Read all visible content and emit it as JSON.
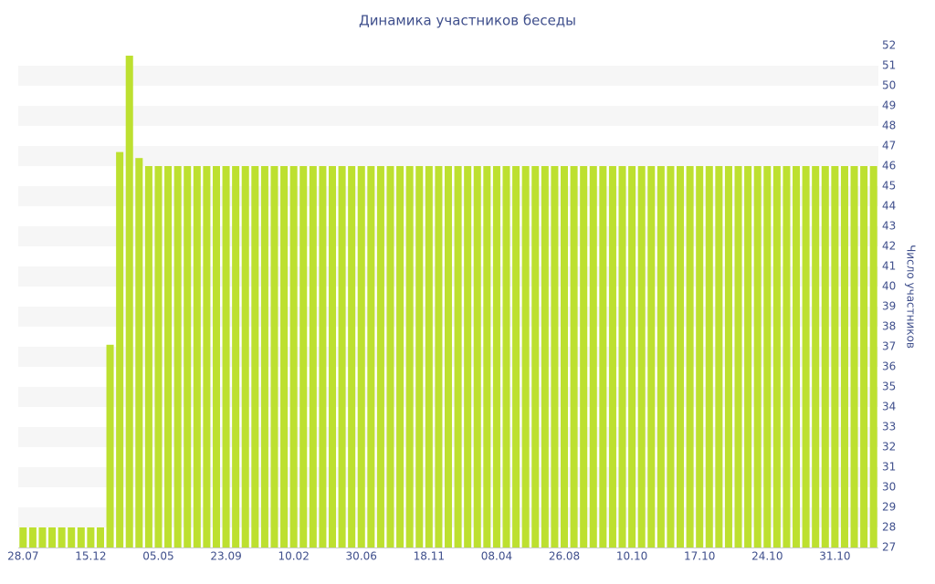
{
  "chart_data": {
    "type": "bar",
    "title": "Динамика участников беседы",
    "y_label": "Число участников",
    "categories": [
      "28.07",
      null,
      null,
      null,
      null,
      null,
      null,
      "15.12",
      null,
      null,
      null,
      null,
      null,
      null,
      "05.05",
      null,
      null,
      null,
      null,
      null,
      null,
      "23.09",
      null,
      null,
      null,
      null,
      null,
      null,
      "10.02",
      null,
      null,
      null,
      null,
      null,
      null,
      "30.06",
      null,
      null,
      null,
      null,
      null,
      null,
      "18.11",
      null,
      null,
      null,
      null,
      null,
      null,
      "08.04",
      null,
      null,
      null,
      null,
      null,
      null,
      "26.08",
      null,
      null,
      null,
      null,
      null,
      null,
      "10.10",
      null,
      null,
      null,
      null,
      null,
      null,
      "17.10",
      null,
      null,
      null,
      null,
      null,
      null,
      "24.10",
      null,
      null,
      null,
      null,
      null,
      null,
      "31.10",
      null,
      null,
      null,
      null
    ],
    "values": [
      28,
      28,
      28,
      28,
      28,
      28,
      28,
      28,
      28,
      37.1,
      46.7,
      51.5,
      46.4,
      46,
      46,
      46,
      46,
      46,
      46,
      46,
      46,
      46,
      46,
      46,
      46,
      46,
      46,
      46,
      46,
      46,
      46,
      46,
      46,
      46,
      46,
      46,
      46,
      46,
      46,
      46,
      46,
      46,
      46,
      46,
      46,
      46,
      46,
      46,
      46,
      46,
      46,
      46,
      46,
      46,
      46,
      46,
      46,
      46,
      46,
      46,
      46,
      46,
      46,
      46,
      46,
      46,
      46,
      46,
      46,
      46,
      46,
      46,
      46,
      46,
      46,
      46,
      46,
      46,
      46,
      46,
      46,
      46,
      46,
      46,
      46,
      46,
      46,
      46,
      46
    ],
    "color": "#bde030",
    "y_axis_side": "right",
    "ylim": [
      27,
      52
    ],
    "yticks": [
      27,
      28,
      29,
      30,
      31,
      32,
      33,
      34,
      35,
      36,
      37,
      38,
      39,
      40,
      41,
      42,
      43,
      44,
      45,
      46,
      47,
      48,
      49,
      50,
      51,
      52
    ],
    "grid": true
  }
}
